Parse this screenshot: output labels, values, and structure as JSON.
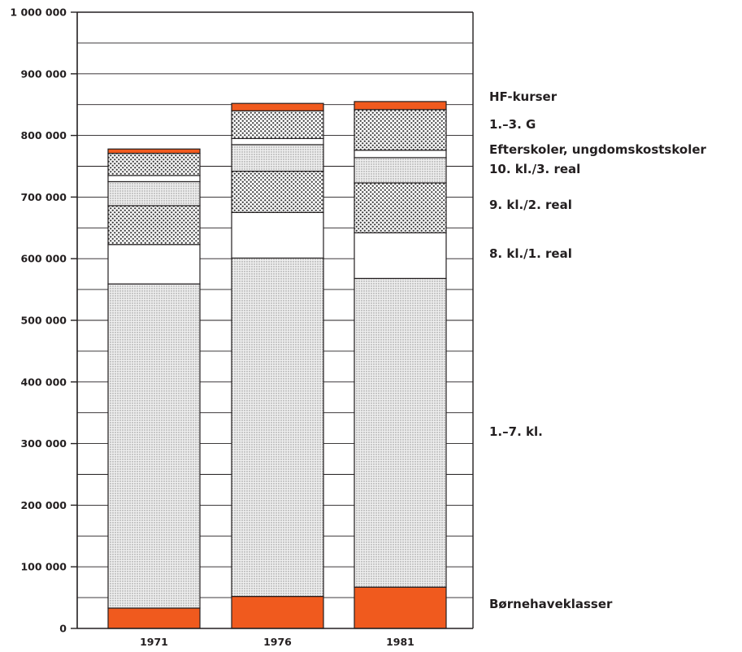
{
  "chart_data": {
    "type": "bar",
    "stacked": true,
    "categories": [
      "1971",
      "1976",
      "1981"
    ],
    "ylim": [
      0,
      1000000
    ],
    "y_ticks": [
      0,
      100000,
      200000,
      300000,
      400000,
      500000,
      600000,
      700000,
      800000,
      900000,
      1000000
    ],
    "y_tick_labels": [
      "0",
      "100 000",
      "200 000",
      "300 000",
      "400 000",
      "500 000",
      "600 000",
      "700 000",
      "800 000",
      "900 000",
      "1 000 000"
    ],
    "grid": true,
    "legend_position": "right",
    "series": [
      {
        "name": "Børnehaveklasser",
        "pattern": "solid-orange",
        "values": [
          33000,
          52000,
          67000
        ]
      },
      {
        "name": "1.–7. kl.",
        "pattern": "fine-dots",
        "values": [
          526000,
          549000,
          501000
        ]
      },
      {
        "name": "8. kl./1. real",
        "pattern": "white",
        "values": [
          64000,
          74000,
          74000
        ]
      },
      {
        "name": "9. kl./2. real",
        "pattern": "coarse-dots",
        "values": [
          63000,
          67000,
          81000
        ]
      },
      {
        "name": "10. kl./3. real",
        "pattern": "fine-dots",
        "values": [
          39000,
          43000,
          41000
        ]
      },
      {
        "name": "Efterskoler, ungdomskostskoler",
        "pattern": "white",
        "values": [
          10000,
          10000,
          12000
        ]
      },
      {
        "name": "1.–3. G",
        "pattern": "coarse-dots",
        "values": [
          36000,
          45000,
          66000
        ]
      },
      {
        "name": "HF-kurser",
        "pattern": "solid-orange",
        "values": [
          7000,
          12000,
          13000
        ]
      }
    ]
  },
  "colors": {
    "accent_orange": "#f05a1e",
    "axis": "#231f20",
    "fine_dot_fill": "#e6e6e6",
    "coarse_dot_fill": "#c9c9c9"
  }
}
